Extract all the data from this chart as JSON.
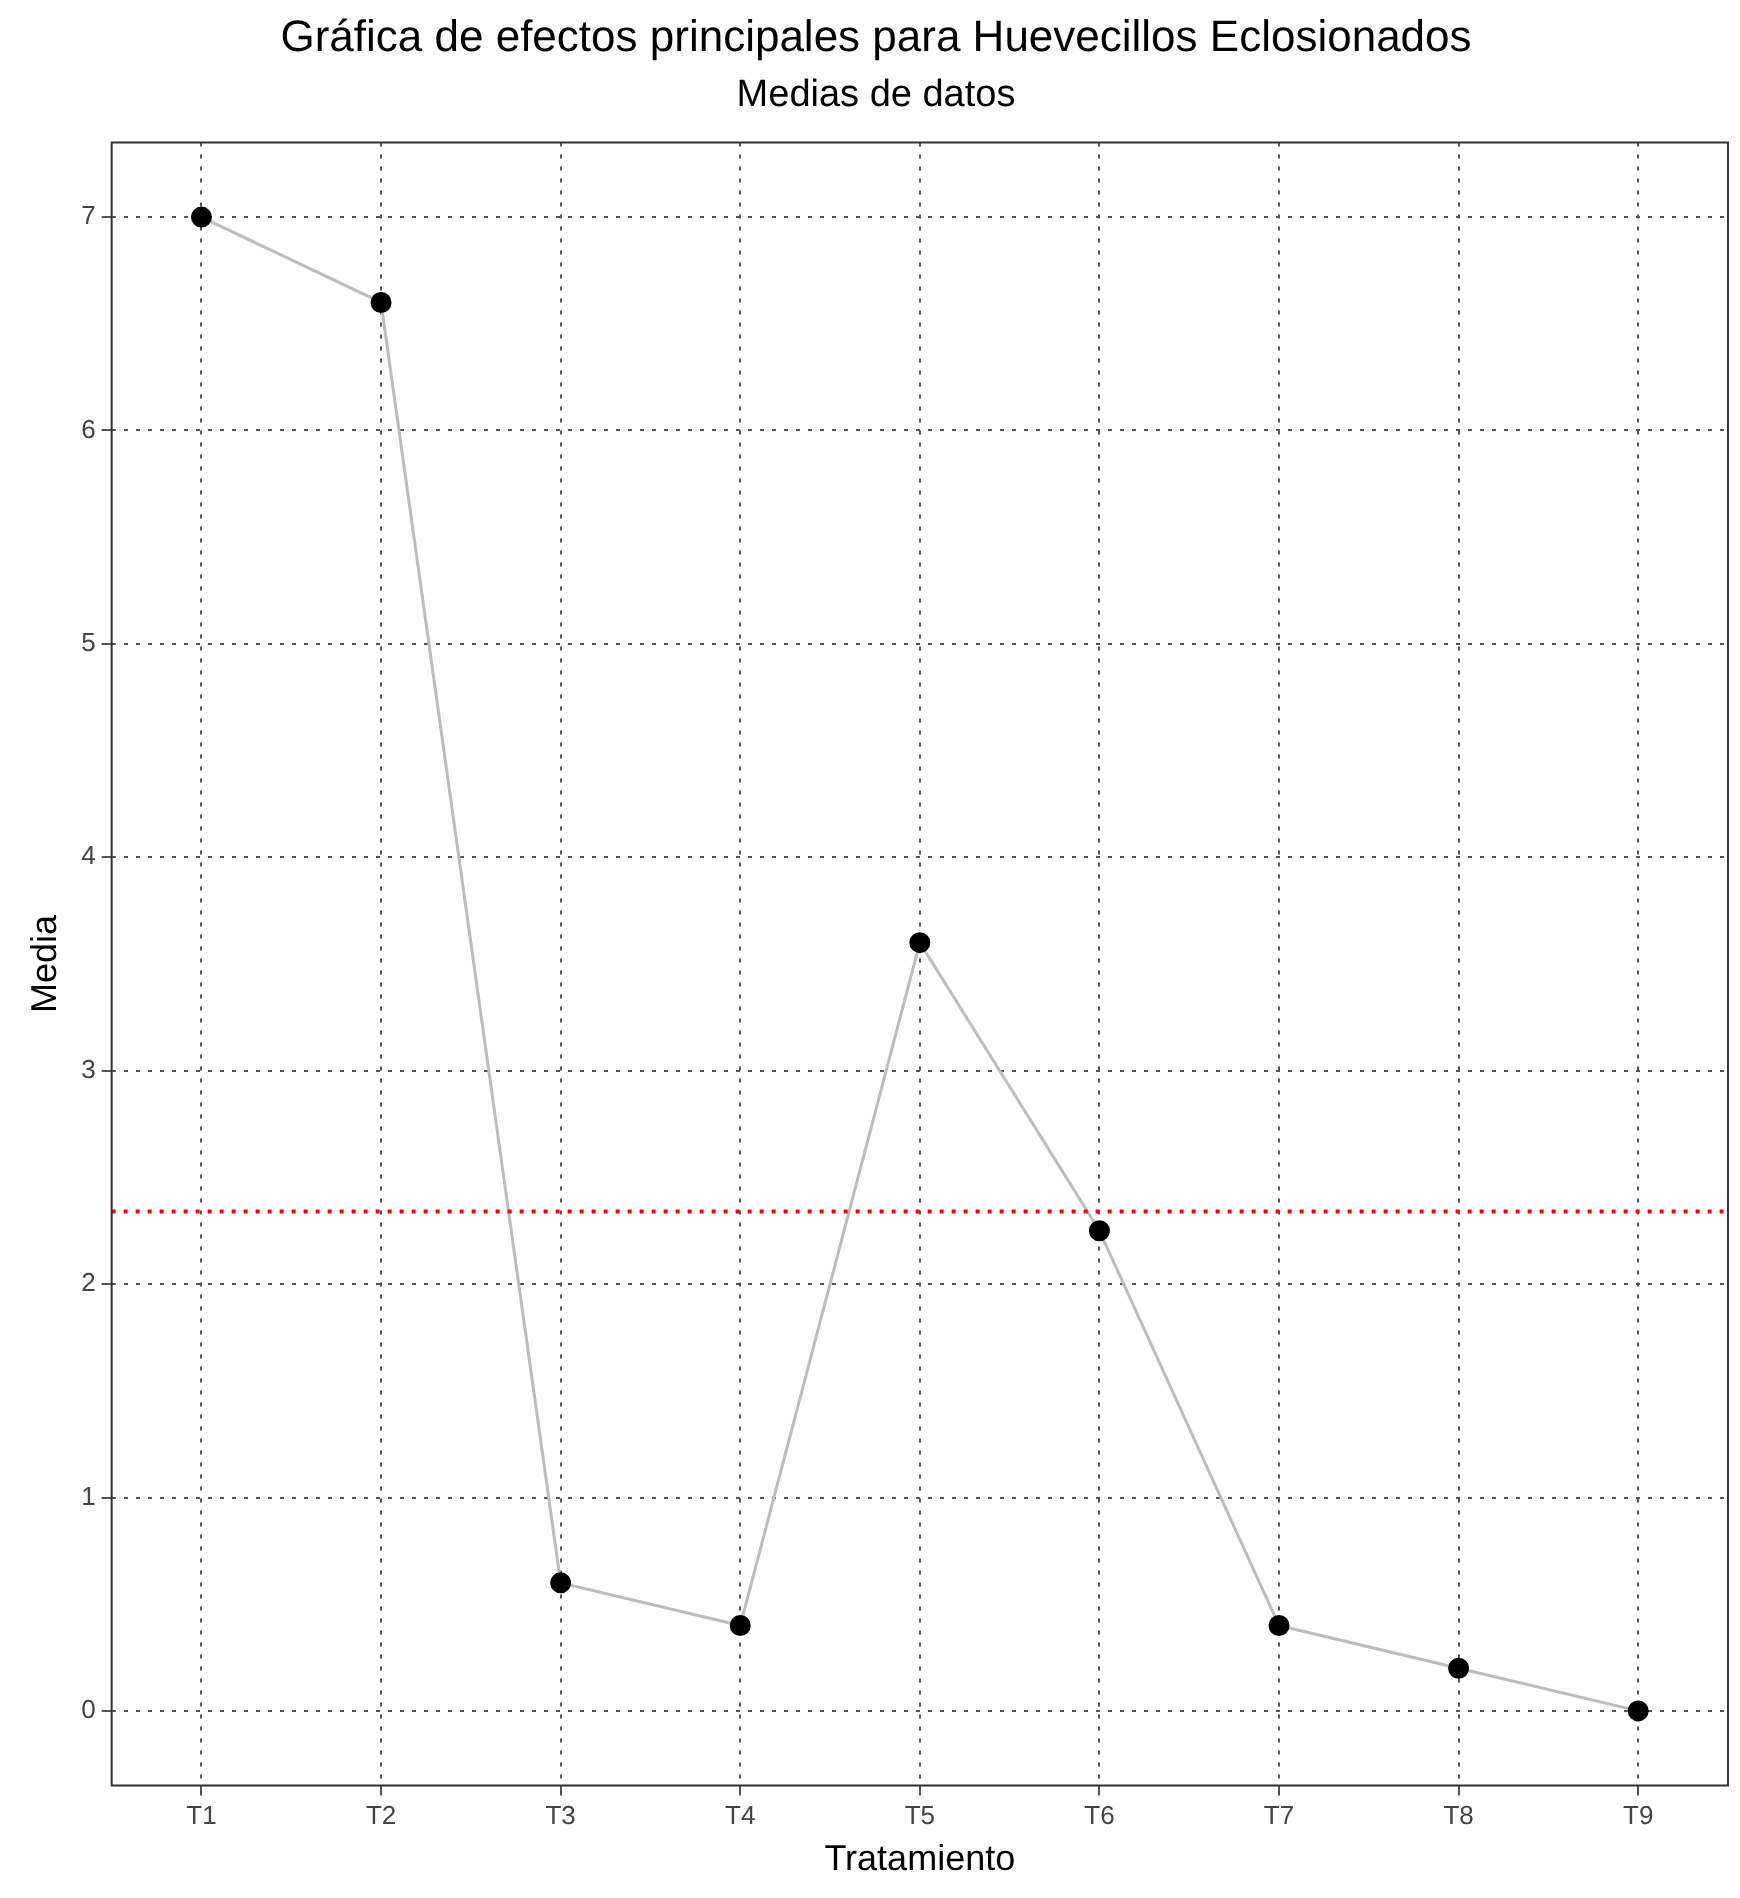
{
  "chart_data": {
    "type": "line",
    "title": "Gráfica de efectos principales para Huevecillos Eclosionados",
    "subtitle": "Medias de datos",
    "xlabel": "Tratamiento",
    "ylabel": "Media",
    "categories": [
      "T1",
      "T2",
      "T3",
      "T4",
      "T5",
      "T6",
      "T7",
      "T8",
      "T9"
    ],
    "series": [
      {
        "color": "#bdbdbd",
        "values": [
          7,
          6.6,
          0.6,
          0.4,
          3.6,
          2.25,
          0.4,
          0.2,
          0
        ]
      }
    ],
    "ylim": [
      -0.35,
      7.35
    ],
    "yticks": [
      0,
      1,
      2,
      3,
      4,
      5,
      6,
      7
    ],
    "grid": true,
    "legend": false,
    "marker": "circle",
    "line_style": "solid",
    "ref_lines": [
      {
        "axis": "y",
        "value": 2.34,
        "color": "#ff0000",
        "line_style": "dotted"
      }
    ]
  }
}
